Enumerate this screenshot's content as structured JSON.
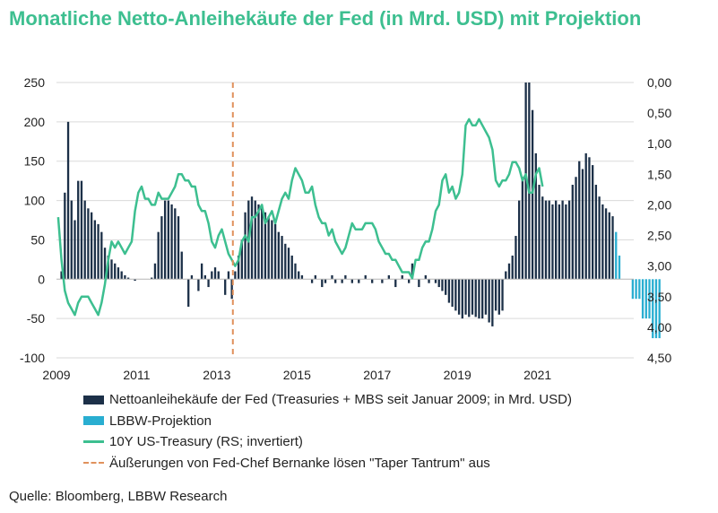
{
  "colors": {
    "title": "#3dbf90",
    "fed_bar": "#1c3048",
    "projection_bar": "#29aed1",
    "treasury_line": "#3dbf90",
    "taper_line": "#e0915c",
    "grid": "#dadada"
  },
  "legend": {
    "fed": "Nettoanleihekäufe der Fed (Treasuries + MBS seit Januar 2009; in Mrd. USD)",
    "projection": "LBBW-Projektion",
    "treasury": "10Y US-Treasury (RS; invertiert)",
    "taper": "Äußerungen von Fed-Chef Bernanke lösen \"Taper Tantrum\" aus"
  },
  "source": "Quelle: Bloomberg, LBBW Research",
  "chart_data": {
    "type": "bar+line",
    "title": "Monatliche Netto-Anleihekäufe der Fed (in Mrd. USD) mit Projektion",
    "x_ticks": [
      "2009",
      "2011",
      "2013",
      "2015",
      "2017",
      "2019",
      "2021"
    ],
    "x_range": [
      2009.0,
      2023.4
    ],
    "ylim_left": [
      -100,
      250
    ],
    "y_ticks_left": [
      "250",
      "200",
      "150",
      "100",
      "50",
      "0",
      "-50",
      "-100"
    ],
    "ylim_right_inverted": [
      0.0,
      4.5
    ],
    "y_ticks_right": [
      "0,00",
      "0,50",
      "1,00",
      "1,50",
      "2,00",
      "2,50",
      "3,00",
      "3,50",
      "4,00",
      "4,50"
    ],
    "grid": "horizontal",
    "legend_position": "bottom",
    "taper_tantrum_date": 2013.4,
    "fed_purchases_monthly": [
      0,
      10,
      110,
      200,
      100,
      75,
      125,
      125,
      100,
      90,
      85,
      75,
      70,
      60,
      40,
      30,
      25,
      20,
      15,
      10,
      5,
      2,
      0,
      -2,
      0,
      0,
      0,
      0,
      2,
      20,
      60,
      80,
      100,
      100,
      95,
      90,
      80,
      35,
      0,
      -35,
      5,
      0,
      -15,
      20,
      5,
      -10,
      10,
      15,
      10,
      0,
      -20,
      10,
      -25,
      10,
      30,
      50,
      85,
      100,
      105,
      100,
      95,
      90,
      85,
      80,
      75,
      70,
      60,
      55,
      45,
      40,
      30,
      20,
      10,
      5,
      0,
      0,
      -5,
      5,
      0,
      -10,
      -5,
      0,
      5,
      -5,
      0,
      -5,
      5,
      0,
      -5,
      0,
      -5,
      0,
      5,
      0,
      -5,
      0,
      0,
      -5,
      0,
      5,
      0,
      -10,
      0,
      5,
      0,
      -5,
      20,
      0,
      -10,
      0,
      5,
      -5,
      0,
      -5,
      -10,
      -15,
      -20,
      -30,
      -35,
      -40,
      -45,
      -50,
      -45,
      -48,
      -45,
      -48,
      -50,
      -50,
      -45,
      -55,
      -60,
      -40,
      -45,
      -40,
      10,
      20,
      30,
      55,
      100,
      130,
      250,
      250,
      215,
      160,
      120,
      105,
      100,
      100,
      95,
      100,
      95,
      100,
      95,
      100,
      120,
      130,
      150,
      140,
      160,
      155,
      145,
      120,
      105,
      95,
      90,
      85,
      80
    ],
    "projection_monthly": [
      60,
      30,
      0,
      0,
      0,
      -25,
      -25,
      -25,
      -50,
      -50,
      -50,
      -75,
      -75,
      -75
    ],
    "treasury_10y_monthly": [
      2.2,
      2.9,
      3.4,
      3.6,
      3.7,
      3.8,
      3.6,
      3.5,
      3.5,
      3.5,
      3.6,
      3.7,
      3.8,
      3.6,
      3.3,
      2.9,
      2.6,
      2.7,
      2.6,
      2.7,
      2.8,
      2.7,
      2.6,
      2.1,
      1.8,
      1.7,
      1.9,
      1.9,
      2.0,
      2.0,
      1.8,
      1.9,
      1.9,
      1.9,
      1.8,
      1.7,
      1.5,
      1.5,
      1.6,
      1.6,
      1.7,
      1.7,
      2.0,
      2.1,
      2.1,
      2.3,
      2.6,
      2.7,
      2.5,
      2.4,
      2.6,
      2.8,
      2.9,
      3.0,
      2.9,
      2.6,
      2.5,
      2.6,
      2.2,
      2.2,
      2.1,
      2.0,
      2.3,
      2.2,
      2.1,
      2.3,
      2.1,
      1.9,
      1.8,
      1.9,
      1.6,
      1.4,
      1.5,
      1.6,
      1.8,
      1.8,
      1.7,
      2.0,
      2.2,
      2.3,
      2.3,
      2.5,
      2.4,
      2.6,
      2.7,
      2.8,
      2.7,
      2.5,
      2.3,
      2.4,
      2.4,
      2.4,
      2.3,
      2.3,
      2.3,
      2.4,
      2.6,
      2.7,
      2.8,
      2.8,
      2.9,
      2.9,
      3.0,
      3.1,
      3.1,
      3.1,
      3.2,
      2.9,
      2.9,
      2.7,
      2.6,
      2.6,
      2.4,
      2.1,
      2.0,
      1.6,
      1.5,
      1.8,
      1.7,
      1.9,
      1.8,
      1.5,
      0.7,
      0.6,
      0.7,
      0.7,
      0.6,
      0.7,
      0.8,
      0.9,
      1.1,
      1.6,
      1.7,
      1.6,
      1.6,
      1.5,
      1.3,
      1.3,
      1.4,
      1.6,
      1.5,
      1.8,
      1.8,
      1.5,
      1.4,
      1.7
    ]
  }
}
